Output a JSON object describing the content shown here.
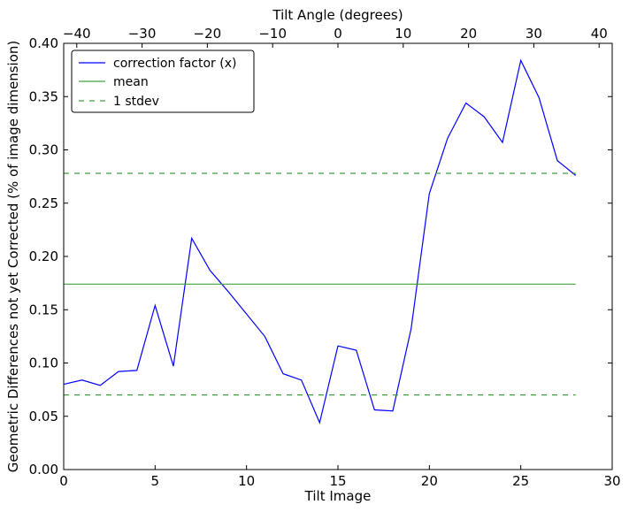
{
  "chart_data": {
    "type": "line",
    "xlabel": "Tilt Image",
    "ylabel": "Geometric Differences not yet Corrected (% of image dimension)",
    "top_xlabel": "Tilt Angle (degrees)",
    "xlim": [
      0,
      30
    ],
    "ylim": [
      0,
      0.4
    ],
    "top_xlim": [
      -42,
      42
    ],
    "x_ticks": [
      0,
      5,
      10,
      15,
      20,
      25,
      30
    ],
    "x_tick_labels": [
      "0",
      "5",
      "10",
      "15",
      "20",
      "25",
      "30"
    ],
    "y_ticks": [
      0,
      0.05,
      0.1,
      0.15,
      0.2,
      0.25,
      0.3,
      0.35,
      0.4
    ],
    "y_tick_labels": [
      "0.00",
      "0.05",
      "0.10",
      "0.15",
      "0.20",
      "0.25",
      "0.30",
      "0.35",
      "0.40"
    ],
    "top_x_ticks": [
      -40,
      -30,
      -20,
      -10,
      0,
      10,
      20,
      30,
      40
    ],
    "top_x_tick_labels": [
      "−40",
      "−30",
      "−20",
      "−10",
      "0",
      "10",
      "20",
      "30",
      "40"
    ],
    "grid": false,
    "legend_position": "top-left",
    "series": [
      {
        "name": "correction factor (x)",
        "style": "solid",
        "color": "#0000ff",
        "x": [
          0,
          1,
          2,
          3,
          4,
          5,
          6,
          7,
          8,
          9,
          10,
          11,
          12,
          13,
          14,
          15,
          16,
          17,
          18,
          19,
          20,
          21,
          22,
          23,
          24,
          25,
          26,
          27,
          28
        ],
        "y": [
          0.08,
          0.084,
          0.079,
          0.092,
          0.093,
          0.154,
          0.097,
          0.217,
          0.187,
          0.167,
          0.146,
          0.125,
          0.09,
          0.084,
          0.044,
          0.116,
          0.112,
          0.056,
          0.055,
          0.132,
          0.259,
          0.311,
          0.344,
          0.331,
          0.307,
          0.384,
          0.349,
          0.29,
          0.276
        ]
      },
      {
        "name": "mean",
        "style": "solid",
        "color": "#40a040",
        "x": [
          0,
          28
        ],
        "y": [
          0.174,
          0.174
        ]
      },
      {
        "name": "1 stdev",
        "style": "dashed",
        "color": "#40a040",
        "x": [
          0,
          28
        ],
        "y": [
          0.278,
          0.278
        ]
      },
      {
        "name": "",
        "style": "dashed",
        "color": "#40a040",
        "x": [
          0,
          28
        ],
        "y": [
          0.07,
          0.07
        ]
      }
    ],
    "legend": [
      {
        "label": "correction factor (x)",
        "color": "#0000ff",
        "style": "solid"
      },
      {
        "label": "mean",
        "color": "#40a040",
        "style": "solid"
      },
      {
        "label": "1 stdev",
        "color": "#40a040",
        "style": "dashed"
      }
    ]
  }
}
